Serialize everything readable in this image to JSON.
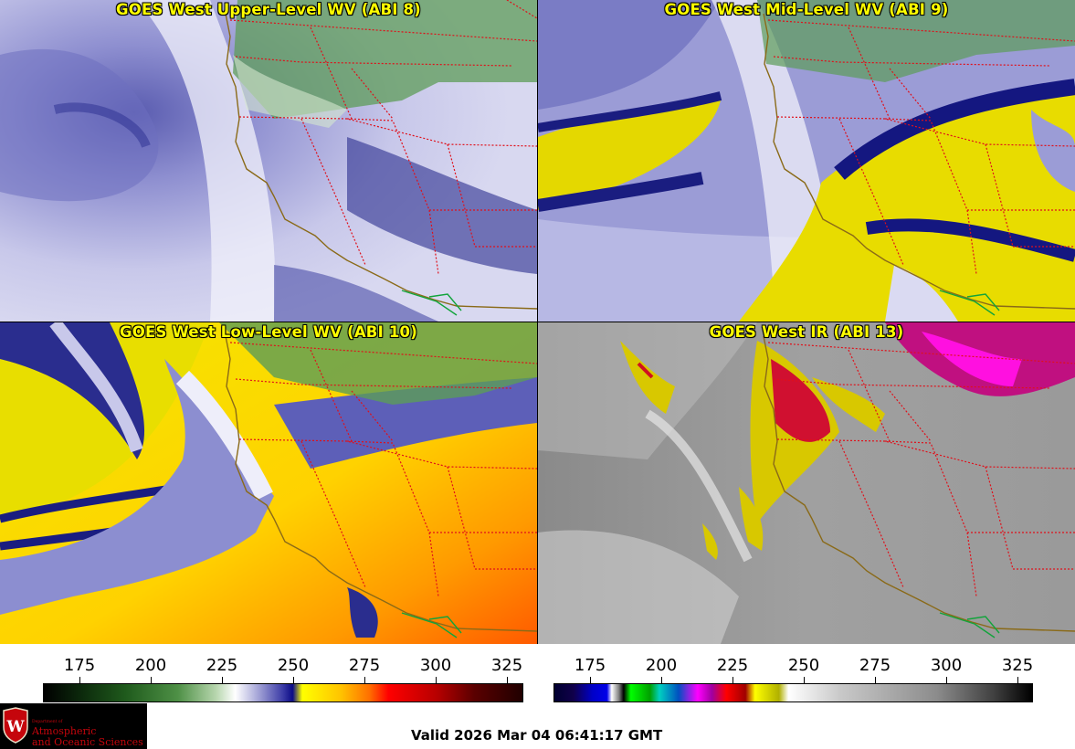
{
  "panels": [
    {
      "title": "GOES West Upper-Level WV (ABI 8)",
      "scheme": "upper"
    },
    {
      "title": "GOES West Mid-Level WV (ABI 9)",
      "scheme": "mid"
    },
    {
      "title": "GOES West Low-Level WV (ABI 10)",
      "scheme": "low"
    },
    {
      "title": "GOES West IR (ABI 13)",
      "scheme": "ir"
    }
  ],
  "colorbars": [
    {
      "name": "water-vapor-colorbar",
      "ticks": [
        "175",
        "200",
        "225",
        "250",
        "275",
        "300",
        "325"
      ]
    },
    {
      "name": "ir-colorbar",
      "ticks": [
        "175",
        "200",
        "225",
        "250",
        "275",
        "300",
        "325"
      ]
    }
  ],
  "logo": {
    "dept": "Department of",
    "line1": "Atmospheric",
    "line2": "and Oceanic Sciences"
  },
  "valid_time": "Valid 2026 Mar 04 06:41:17 GMT",
  "colors": {
    "coast": "#8a6a18",
    "state_border": "#e0101a",
    "mexico_border": "#11a43b",
    "title": "#ffff00"
  }
}
